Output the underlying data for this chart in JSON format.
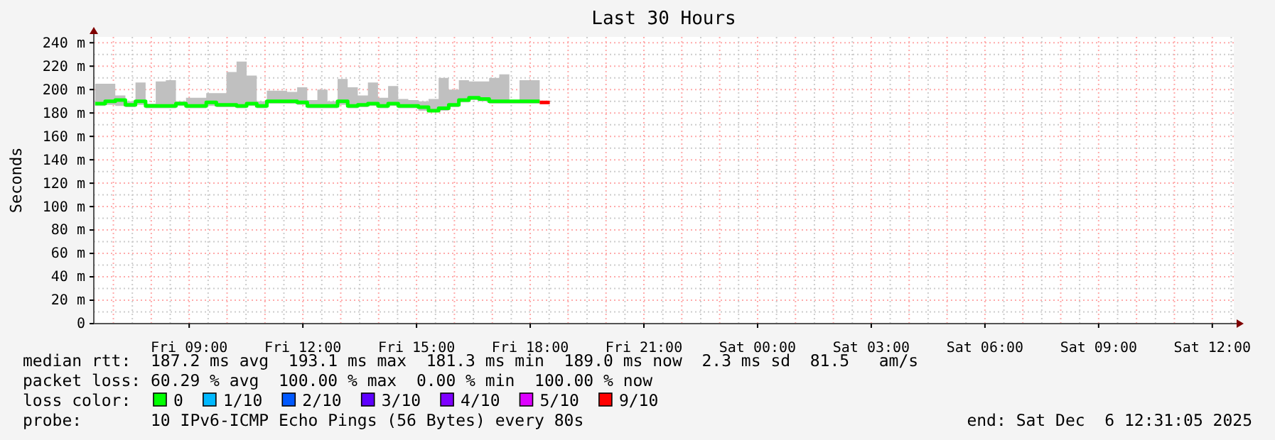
{
  "chart_data": {
    "type": "step",
    "title": "Last 30 Hours",
    "ylabel": "Seconds",
    "xlim": [
      "2025-12-05T06:29",
      "2025-12-06T12:34"
    ],
    "xticks": [
      {
        "value": "2025-12-05T09:00",
        "label": "Fri 09:00"
      },
      {
        "value": "2025-12-05T12:00",
        "label": "Fri 12:00"
      },
      {
        "value": "2025-12-05T15:00",
        "label": "Fri 15:00"
      },
      {
        "value": "2025-12-05T18:00",
        "label": "Fri 18:00"
      },
      {
        "value": "2025-12-05T21:00",
        "label": "Fri 21:00"
      },
      {
        "value": "2025-12-06T00:00",
        "label": "Sat 00:00"
      },
      {
        "value": "2025-12-06T03:00",
        "label": "Sat 03:00"
      },
      {
        "value": "2025-12-06T06:00",
        "label": "Sat 06:00"
      },
      {
        "value": "2025-12-06T09:00",
        "label": "Sat 09:00"
      },
      {
        "value": "2025-12-06T12:00",
        "label": "Sat 12:00"
      }
    ],
    "ylim": [
      0,
      245
    ],
    "yticks": [
      0,
      {
        "value": 20,
        "label": "20 m"
      },
      {
        "value": 40,
        "label": "40 m"
      },
      {
        "value": 60,
        "label": "60 m"
      },
      {
        "value": 80,
        "label": "80 m"
      },
      {
        "value": 100,
        "label": "100 m"
      },
      {
        "value": 120,
        "label": "120 m"
      },
      {
        "value": 140,
        "label": "140 m"
      },
      {
        "value": 160,
        "label": "160 m"
      },
      {
        "value": 180,
        "label": "180 m"
      },
      {
        "value": 200,
        "label": "200 m"
      },
      {
        "value": 220,
        "label": "220 m"
      },
      {
        "value": 240,
        "label": "240 m"
      }
    ],
    "grid": true,
    "legend": "bottom",
    "legend_title": "loss color:",
    "series": [
      {
        "name": "0",
        "color": "#00ff00",
        "x": [
          "2025-12-05T06:31",
          "2025-12-05T06:47",
          "2025-12-05T07:03",
          "2025-12-05T07:19",
          "2025-12-05T07:35",
          "2025-12-05T07:51",
          "2025-12-05T08:07",
          "2025-12-05T08:23",
          "2025-12-05T08:39",
          "2025-12-05T08:55",
          "2025-12-05T09:11",
          "2025-12-05T09:27",
          "2025-12-05T09:43",
          "2025-12-05T09:59",
          "2025-12-05T10:15",
          "2025-12-05T10:31",
          "2025-12-05T10:47",
          "2025-12-05T11:03",
          "2025-12-05T11:19",
          "2025-12-05T11:35",
          "2025-12-05T11:51",
          "2025-12-05T12:07",
          "2025-12-05T12:23",
          "2025-12-05T12:39",
          "2025-12-05T12:55",
          "2025-12-05T13:11",
          "2025-12-05T13:27",
          "2025-12-05T13:43",
          "2025-12-05T13:59",
          "2025-12-05T14:15",
          "2025-12-05T14:31",
          "2025-12-05T14:47",
          "2025-12-05T15:03",
          "2025-12-05T15:19",
          "2025-12-05T15:35",
          "2025-12-05T15:51",
          "2025-12-05T16:07",
          "2025-12-05T16:23",
          "2025-12-05T16:39",
          "2025-12-05T16:55",
          "2025-12-05T17:11",
          "2025-12-05T17:27",
          "2025-12-05T17:43",
          "2025-12-05T17:59",
          "2025-12-05T18:15"
        ],
        "values": [
          188,
          190,
          191,
          187,
          190,
          186,
          186,
          186,
          188,
          186,
          186,
          189,
          187,
          187,
          186,
          188,
          186,
          190,
          190,
          190,
          189,
          186,
          186,
          186,
          190,
          186,
          187,
          188,
          186,
          188,
          186,
          186,
          185,
          182,
          184,
          187,
          191,
          193,
          192,
          190,
          190,
          190,
          190,
          190,
          190
        ],
        "lower": [
          186,
          187,
          186,
          185,
          187,
          184,
          184,
          184,
          186,
          184,
          184,
          186,
          185,
          185,
          184,
          186,
          184,
          188,
          188,
          188,
          187,
          184,
          184,
          184,
          187,
          184,
          185,
          186,
          184,
          186,
          184,
          184,
          182,
          181,
          182,
          185,
          189,
          191,
          190,
          188,
          188,
          188,
          188,
          188,
          188
        ],
        "upper": [
          205,
          205,
          195,
          190,
          206,
          188,
          207,
          208,
          190,
          193,
          193,
          197,
          197,
          215,
          224,
          212,
          190,
          199,
          199,
          198,
          202,
          191,
          200,
          190,
          209,
          202,
          195,
          206,
          193,
          203,
          192,
          191,
          190,
          192,
          210,
          200,
          208,
          207,
          207,
          210,
          213,
          190,
          208,
          208,
          208
        ]
      },
      {
        "name": "1/10",
        "color": "#00b8ff"
      },
      {
        "name": "2/10",
        "color": "#0059ff"
      },
      {
        "name": "3/10",
        "color": "#5e00ff"
      },
      {
        "name": "4/10",
        "color": "#7e00ff"
      },
      {
        "name": "5/10",
        "color": "#dd00ff"
      },
      {
        "name": "9/10",
        "color": "#ff0000",
        "x": [
          "2025-12-05T18:15",
          "2025-12-05T18:31"
        ],
        "values": [
          189,
          189
        ]
      }
    ],
    "annotations": [
      "median rtt:  187.2 ms avg  193.1 ms max  181.3 ms min  189.0 ms now  2.3 ms sd  81.5   am/s",
      "packet loss: 60.29 % avg  100.00 % max  0.00 % min  100.00 % now",
      "probe:       10 IPv6-ICMP Echo Pings (56 Bytes) every 80s",
      "end: Sat Dec  6 12:31:05 2025"
    ]
  }
}
